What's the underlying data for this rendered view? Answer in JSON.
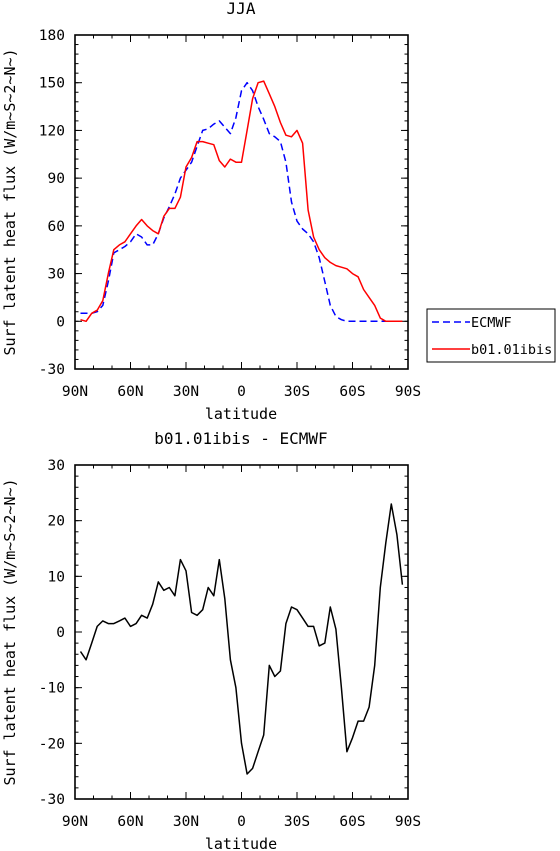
{
  "chart_data": [
    {
      "type": "line",
      "title": "JJA",
      "xlabel": "latitude",
      "ylabel": "Surf latent heat flux (W/m~S~2~N~)",
      "xlim": [
        90,
        -90
      ],
      "ylim": [
        -30,
        180
      ],
      "x_ticks": [
        90,
        60,
        30,
        0,
        -30,
        -60,
        -90
      ],
      "x_tick_labels": [
        "90N",
        "60N",
        "30N",
        "0",
        "30S",
        "60S",
        "90S"
      ],
      "y_ticks": [
        -30,
        0,
        30,
        60,
        90,
        120,
        150,
        180
      ],
      "y_tick_labels": [
        "-30",
        "0",
        "30",
        "60",
        "90",
        "120",
        "150",
        "180"
      ],
      "legend": {
        "placement": "right-outside"
      },
      "series": [
        {
          "name": "ECMWF",
          "color": "#0000ff",
          "dash": "dashed",
          "x": [
            87,
            84,
            81,
            78,
            75,
            72,
            69,
            66,
            63,
            60,
            57,
            54,
            51,
            48,
            45,
            42,
            39,
            36,
            33,
            30,
            27,
            24,
            21,
            18,
            15,
            12,
            9,
            6,
            3,
            0,
            -3,
            -6,
            -9,
            -12,
            -15,
            -18,
            -21,
            -24,
            -27,
            -30,
            -33,
            -36,
            -39,
            -42,
            -45,
            -48,
            -51,
            -54,
            -57,
            -60,
            -63,
            -66,
            -69,
            -72,
            -75,
            -78,
            -81,
            -84,
            -87
          ],
          "y": [
            5,
            5,
            5,
            6,
            10,
            25,
            43,
            45,
            47,
            50,
            55,
            53,
            48,
            48,
            55,
            65,
            72,
            80,
            90,
            95,
            100,
            110,
            120,
            121,
            124,
            126,
            122,
            118,
            128,
            145,
            150,
            145,
            135,
            127,
            118,
            116,
            113,
            100,
            75,
            63,
            58,
            55,
            50,
            40,
            25,
            10,
            3,
            1,
            0,
            0,
            0,
            0,
            0,
            0,
            0,
            0,
            0,
            0,
            0
          ]
        },
        {
          "name": "b01.01ibis",
          "color": "#ff0000",
          "dash": "solid",
          "x": [
            87,
            84,
            81,
            78,
            75,
            72,
            69,
            66,
            63,
            60,
            57,
            54,
            51,
            48,
            45,
            42,
            39,
            36,
            33,
            30,
            27,
            24,
            21,
            18,
            15,
            12,
            9,
            6,
            3,
            0,
            -3,
            -6,
            -9,
            -12,
            -15,
            -18,
            -21,
            -24,
            -27,
            -30,
            -33,
            -36,
            -39,
            -42,
            -45,
            -48,
            -51,
            -54,
            -57,
            -60,
            -63,
            -66,
            -69,
            -72,
            -75,
            -78,
            -81,
            -84,
            -87
          ],
          "y": [
            1,
            0,
            5,
            7,
            13,
            30,
            45,
            48,
            50,
            55,
            60,
            64,
            60,
            57,
            55,
            66,
            71,
            71,
            78,
            97,
            103,
            113,
            113,
            112,
            111,
            101,
            97,
            102,
            100,
            100,
            120,
            140,
            150,
            151,
            143,
            135,
            125,
            117,
            116,
            120,
            112,
            70,
            53,
            45,
            40,
            37,
            35,
            34,
            33,
            30,
            28,
            20,
            15,
            10,
            2,
            0,
            0,
            0,
            0
          ]
        }
      ]
    },
    {
      "type": "line",
      "title": "b01.01ibis - ECMWF",
      "xlabel": "latitude",
      "ylabel": "Surf latent heat flux (W/m~S~2~N~)",
      "xlim": [
        90,
        -90
      ],
      "ylim": [
        -30,
        30
      ],
      "x_ticks": [
        90,
        60,
        30,
        0,
        -30,
        -60,
        -90
      ],
      "x_tick_labels": [
        "90N",
        "60N",
        "30N",
        "0",
        "30S",
        "60S",
        "90S"
      ],
      "y_ticks": [
        -30,
        -20,
        -10,
        0,
        10,
        20,
        30
      ],
      "y_tick_labels": [
        "-30",
        "-20",
        "-10",
        "0",
        "10",
        "20",
        "30"
      ],
      "series": [
        {
          "color": "#000000",
          "dash": "solid",
          "x": [
            87,
            84,
            81,
            78,
            75,
            72,
            69,
            66,
            63,
            60,
            57,
            54,
            51,
            48,
            45,
            42,
            39,
            36,
            33,
            30,
            27,
            24,
            21,
            18,
            15,
            12,
            9,
            6,
            3,
            0,
            -3,
            -6,
            -9,
            -12,
            -15,
            -18,
            -21,
            -24,
            -27,
            -30,
            -33,
            -36,
            -39,
            -42,
            -45,
            -48,
            -51,
            -54,
            -57,
            -60,
            -63,
            -66,
            -69,
            -72,
            -75,
            -78,
            -81,
            -84,
            -87
          ],
          "y": [
            -3.5,
            -5,
            -2,
            1,
            2,
            1.5,
            1.5,
            2,
            2.5,
            1,
            1.5,
            3,
            2.5,
            5,
            9,
            7.5,
            8,
            6.5,
            13,
            11,
            3.5,
            3,
            4,
            8,
            6.5,
            13,
            6,
            -5,
            -10,
            -20,
            -25.5,
            -24.5,
            -21.5,
            -18.5,
            -6,
            -8,
            -7,
            1.5,
            4.5,
            4,
            2.5,
            1,
            1,
            -2.5,
            -2,
            4.5,
            0.5,
            -10,
            -21.5,
            -19,
            -16,
            -16,
            -13.5,
            -6,
            8,
            16,
            23,
            17.5,
            8.5
          ]
        }
      ]
    }
  ]
}
